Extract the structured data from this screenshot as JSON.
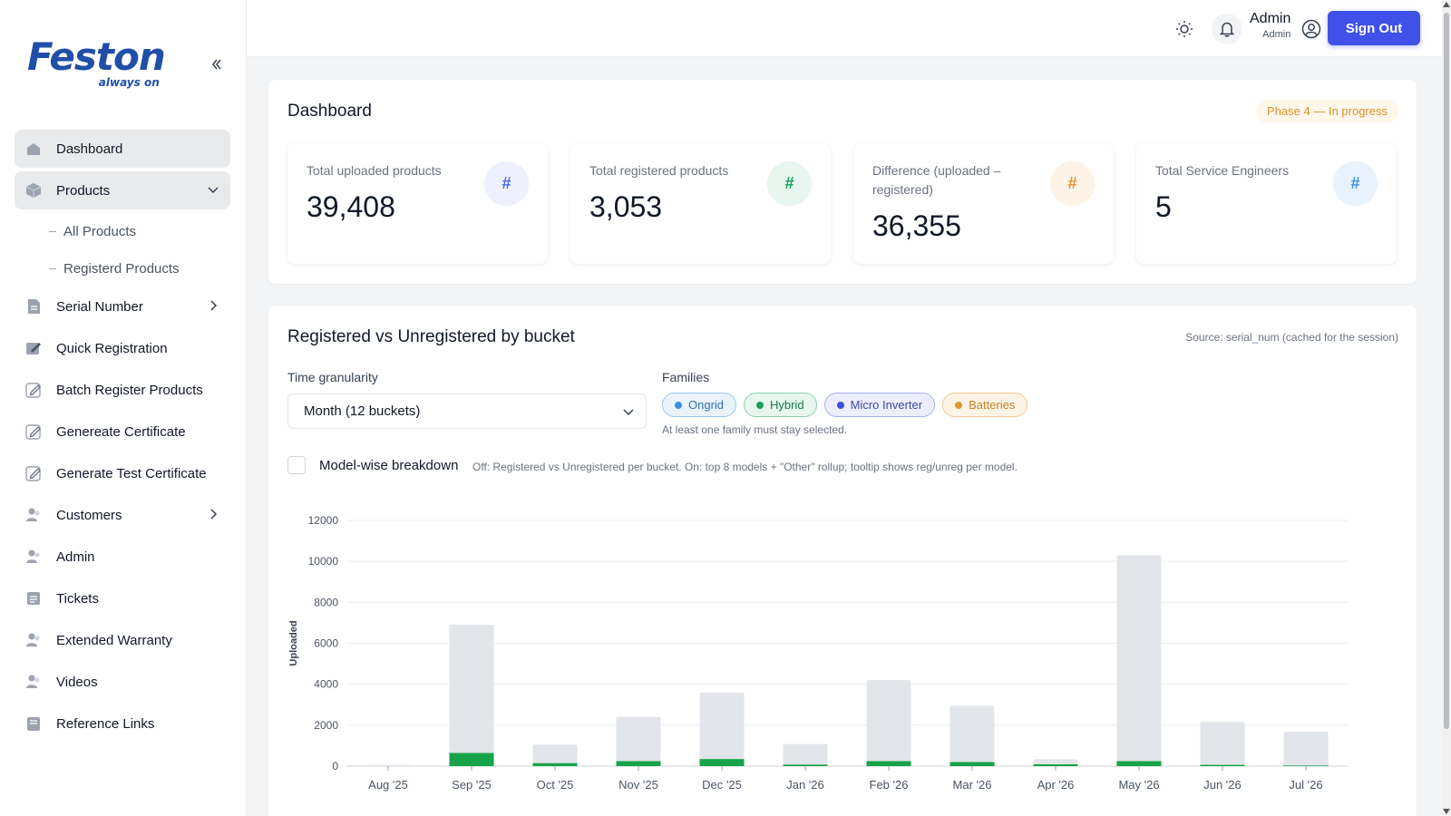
{
  "brand": {
    "name": "Feston",
    "tagline": "always on"
  },
  "sidebar": {
    "items": [
      {
        "label": "Dashboard",
        "icon": "dashboard-icon"
      },
      {
        "label": "Products",
        "icon": "box-icon",
        "expanded": true,
        "children": [
          {
            "label": "All Products"
          },
          {
            "label": "Registerd Products"
          }
        ]
      },
      {
        "label": "Serial Number",
        "icon": "document-icon"
      },
      {
        "label": "Quick Registration",
        "icon": "edit-form-icon"
      },
      {
        "label": "Batch Register Products",
        "icon": "pencil-icon"
      },
      {
        "label": "Genereate Certificate",
        "icon": "pencil-icon"
      },
      {
        "label": "Generate Test Certificate",
        "icon": "pencil-icon"
      },
      {
        "label": "Customers",
        "icon": "users-icon"
      },
      {
        "label": "Admin",
        "icon": "users-icon"
      },
      {
        "label": "Tickets",
        "icon": "ticket-icon"
      },
      {
        "label": "Extended Warranty",
        "icon": "users-icon"
      },
      {
        "label": "Videos",
        "icon": "users-icon"
      },
      {
        "label": "Reference Links",
        "icon": "book-icon"
      }
    ]
  },
  "header": {
    "user_name": "Admin",
    "user_role": "Admin",
    "sign_out": "Sign Out"
  },
  "dashboard": {
    "title": "Dashboard",
    "phase": "Phase 4 — In progress",
    "stats": [
      {
        "label": "Total uploaded products",
        "value": "39,408",
        "badge": "#",
        "color": "#4f6bed",
        "bg": "#eef0fd"
      },
      {
        "label": "Total registered products",
        "value": "3,053",
        "badge": "#",
        "color": "#1a9e59",
        "bg": "#e7f6ee"
      },
      {
        "label": "Difference (uploaded – registered)",
        "value": "36,355",
        "badge": "#",
        "color": "#e0962f",
        "bg": "#fdf3e6"
      },
      {
        "label": "Total Service Engineers",
        "value": "5",
        "badge": "#",
        "color": "#3c93e6",
        "bg": "#e8f3fd"
      }
    ]
  },
  "chart_section": {
    "title": "Registered vs Unregistered by bucket",
    "source": "Source: serial_num (cached for the session)",
    "granularity_label": "Time granularity",
    "granularity_value": "Month (12 buckets)",
    "families_label": "Families",
    "families": [
      {
        "name": "Ongrid",
        "dot": "#3b8fe0",
        "border": "#9cc7ef",
        "bg": "#eaf3fc",
        "text": "#2f6fb3"
      },
      {
        "name": "Hybrid",
        "dot": "#1aa05a",
        "border": "#8fd1ad",
        "bg": "#e7f6ee",
        "text": "#1d7a49"
      },
      {
        "name": "Micro Inverter",
        "dot": "#3f51d8",
        "border": "#a9b1ef",
        "bg": "#eceefc",
        "text": "#3b4aa6"
      },
      {
        "name": "Batteries",
        "dot": "#e0962f",
        "border": "#f0cb93",
        "bg": "#fdf4e7",
        "text": "#c5822a"
      }
    ],
    "families_hint": "At least one family must stay selected.",
    "breakdown_label": "Model-wise breakdown",
    "breakdown_hint": "Off: Registered vs Unregistered per bucket. On: top 8 models + \"Other\" rollup; tooltip shows reg/unreg per model."
  },
  "chart_data": {
    "type": "bar",
    "stacked": true,
    "categories": [
      "Aug '25",
      "Sep '25",
      "Oct '25",
      "Nov '25",
      "Dec '25",
      "Jan '26",
      "Feb '26",
      "Mar '26",
      "Apr '26",
      "May '26",
      "Jun '26",
      "Jul '26"
    ],
    "series": [
      {
        "values": [
          0,
          650,
          150,
          250,
          350,
          80,
          250,
          200,
          90,
          250,
          60,
          30
        ],
        "color": "#16a34a"
      },
      {
        "values": [
          10,
          6250,
          900,
          2150,
          3250,
          1000,
          3950,
          2750,
          250,
          10050,
          2100,
          1650
        ],
        "color": "#e2e5ea"
      }
    ],
    "ylabel": "Uploaded",
    "ylim": [
      0,
      12000
    ],
    "yticks": [
      0,
      2000,
      4000,
      6000,
      8000,
      10000,
      12000
    ],
    "grid": true
  }
}
